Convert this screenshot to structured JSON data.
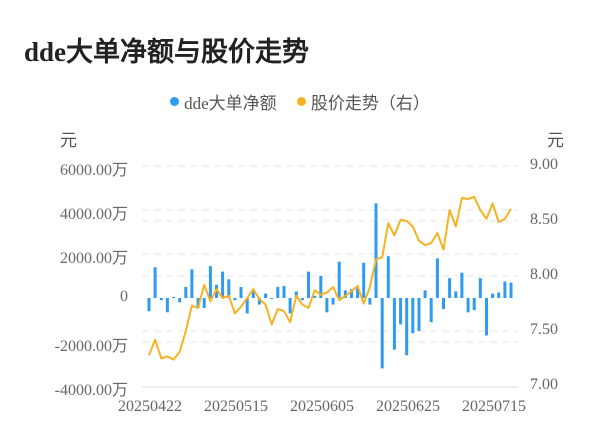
{
  "title": "dde大单净额与股价走势",
  "legend": [
    {
      "label": "dde大单净额",
      "color": "#2f9bf0"
    },
    {
      "label": "股价走势（右）",
      "color": "#f5b324"
    }
  ],
  "axes": {
    "left_unit": "元",
    "right_unit": "元",
    "left_ticks": [
      "6000.00万",
      "4000.00万",
      "2000.00万",
      "0",
      "-2000.00万",
      "-4000.00万"
    ],
    "right_ticks": [
      "9.00",
      "8.50",
      "8.00",
      "7.50",
      "7.00"
    ],
    "x_ticks": [
      "20250422",
      "20250515",
      "20250605",
      "20250625",
      "20250715"
    ]
  },
  "chart_data": {
    "type": "bar+line",
    "title": "dde大单净额与股价走势",
    "x_tick_labels": [
      "20250422",
      "20250515",
      "20250605",
      "20250625",
      "20250715"
    ],
    "left_axis": {
      "label": "元",
      "unit": "万",
      "range": [
        -4000,
        6000
      ],
      "ticks": [
        -4000,
        -2000,
        0,
        2000,
        4000,
        6000
      ]
    },
    "right_axis": {
      "label": "元",
      "range": [
        7.0,
        9.0
      ],
      "ticks": [
        7.0,
        7.5,
        8.0,
        8.5,
        9.0
      ]
    },
    "grid": "horizontal dashed",
    "legend_position": "top-center",
    "series": [
      {
        "name": "dde大单净额",
        "type": "bar",
        "axis": "left",
        "unit": "万元",
        "color": "#2f9bf0",
        "values": [
          -600,
          1400,
          -100,
          -650,
          50,
          -200,
          500,
          1300,
          -450,
          -450,
          1450,
          600,
          1200,
          850,
          -100,
          500,
          -700,
          400,
          -300,
          200,
          -50,
          500,
          550,
          -700,
          300,
          -100,
          1200,
          100,
          1000,
          -650,
          -300,
          1650,
          350,
          400,
          450,
          1600,
          -300,
          4300,
          -3200,
          1900,
          -2350,
          -1200,
          -2600,
          -1600,
          -1500,
          350,
          -1100,
          1800,
          -500,
          900,
          300,
          1150,
          -650,
          -550,
          900,
          -1700,
          200,
          250,
          750,
          700
        ]
      },
      {
        "name": "股价走势（右）",
        "type": "line",
        "axis": "right",
        "color": "#f5b324",
        "values": [
          7.28,
          7.42,
          7.25,
          7.27,
          7.24,
          7.31,
          7.5,
          7.73,
          7.71,
          7.92,
          7.77,
          7.88,
          7.8,
          7.82,
          7.66,
          7.72,
          7.8,
          7.88,
          7.79,
          7.74,
          7.56,
          7.7,
          7.68,
          7.58,
          7.82,
          7.74,
          7.71,
          7.87,
          7.83,
          7.85,
          7.9,
          7.78,
          7.82,
          7.86,
          7.91,
          7.75,
          7.9,
          8.15,
          8.17,
          8.48,
          8.37,
          8.51,
          8.5,
          8.45,
          8.32,
          8.28,
          8.3,
          8.39,
          8.24,
          8.6,
          8.45,
          8.71,
          8.7,
          8.72,
          8.6,
          8.52,
          8.66,
          8.49,
          8.52,
          8.61
        ]
      }
    ]
  }
}
